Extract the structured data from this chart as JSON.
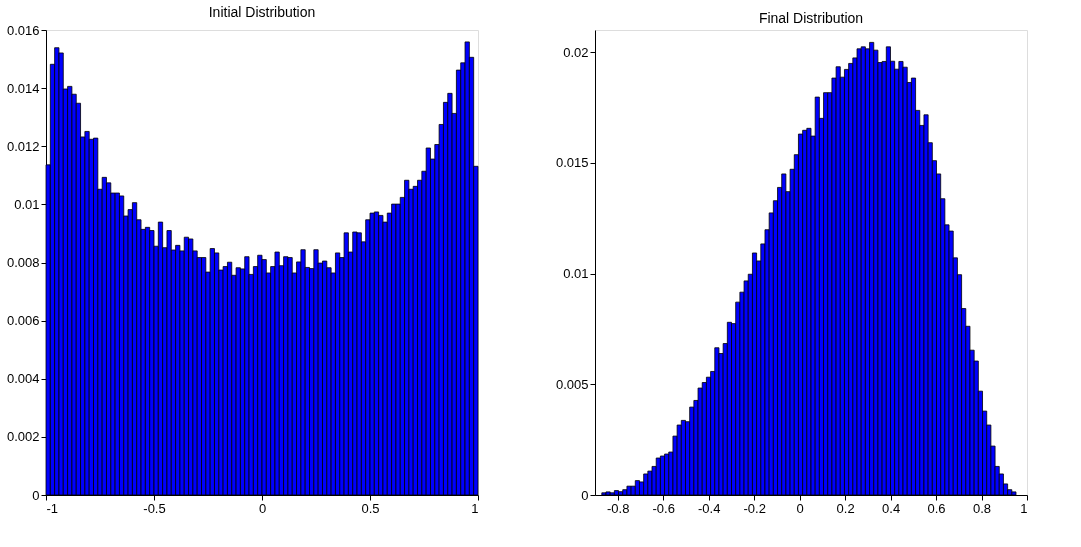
{
  "chart_data": [
    {
      "type": "histogram",
      "title": "Initial Distribution",
      "color": "#0000ff",
      "bins": [
        -1,
        -0.98,
        -0.96,
        -0.94,
        -0.92,
        -0.9,
        -0.88,
        -0.86,
        -0.84,
        -0.82,
        -0.8,
        -0.78,
        -0.76,
        -0.74,
        -0.72,
        -0.7,
        -0.68,
        -0.66,
        -0.64,
        -0.62,
        -0.6,
        -0.58,
        -0.56,
        -0.54,
        -0.52,
        -0.5,
        -0.48,
        -0.46,
        -0.44,
        -0.42,
        -0.4,
        -0.38,
        -0.36,
        -0.34,
        -0.32,
        -0.3,
        -0.28,
        -0.26,
        -0.24,
        -0.22,
        -0.2,
        -0.18,
        -0.16,
        -0.14,
        -0.12,
        -0.1,
        -0.08,
        -0.06,
        -0.04,
        -0.02,
        0,
        0.02,
        0.04,
        0.06,
        0.08,
        0.1,
        0.12,
        0.14,
        0.16,
        0.18,
        0.2,
        0.22,
        0.24,
        0.26,
        0.28,
        0.3,
        0.32,
        0.34,
        0.36,
        0.38,
        0.4,
        0.42,
        0.44,
        0.46,
        0.48,
        0.5,
        0.52,
        0.54,
        0.56,
        0.58,
        0.6,
        0.62,
        0.64,
        0.66,
        0.68,
        0.7,
        0.72,
        0.74,
        0.76,
        0.78,
        0.8,
        0.82,
        0.84,
        0.86,
        0.88,
        0.9,
        0.92,
        0.94,
        0.96,
        0.98,
        1
      ],
      "values": [
        0.01136,
        0.01482,
        0.01539,
        0.01521,
        0.01397,
        0.01406,
        0.01379,
        0.01348,
        0.01232,
        0.01251,
        0.01224,
        0.01228,
        0.01052,
        0.01093,
        0.01074,
        0.01039,
        0.01039,
        0.01029,
        0.0096,
        0.00982,
        0.01006,
        0.00947,
        0.00914,
        0.00921,
        0.0091,
        0.00856,
        0.00939,
        0.00851,
        0.0091,
        0.00843,
        0.00859,
        0.0084,
        0.00887,
        0.00881,
        0.0084,
        0.00817,
        0.00817,
        0.00767,
        0.00848,
        0.00833,
        0.00774,
        0.00786,
        0.00801,
        0.00756,
        0.00782,
        0.00778,
        0.0082,
        0.00759,
        0.00786,
        0.00825,
        0.0081,
        0.00764,
        0.00786,
        0.00836,
        0.00789,
        0.0082,
        0.00817,
        0.00764,
        0.00802,
        0.00844,
        0.00783,
        0.00779,
        0.00844,
        0.00798,
        0.00805,
        0.00782,
        0.00764,
        0.00833,
        0.00817,
        0.00902,
        0.00836,
        0.00905,
        0.00902,
        0.00871,
        0.00947,
        0.0097,
        0.00974,
        0.00962,
        0.00939,
        0.0097,
        0.01001,
        0.01001,
        0.01024,
        0.01083,
        0.01052,
        0.01062,
        0.01083,
        0.01114,
        0.01194,
        0.01156,
        0.01206,
        0.01275,
        0.01351,
        0.01382,
        0.01313,
        0.01462,
        0.01487,
        0.01559,
        0.01506,
        0.01131
      ],
      "xlim": [
        -1,
        1
      ],
      "ylim": [
        0,
        0.016
      ],
      "xticks": [
        -1,
        -0.5,
        0,
        0.5,
        1
      ],
      "yticks": [
        0,
        0.002,
        0.004,
        0.006,
        0.008,
        0.01,
        0.012,
        0.014,
        0.016
      ]
    },
    {
      "type": "histogram",
      "title": "Final Distribution",
      "color": "#0000ff",
      "bins": [
        -0.87,
        -0.8516,
        -0.8332,
        -0.8148,
        -0.7964,
        -0.778,
        -0.7596,
        -0.7412,
        -0.7228,
        -0.7044,
        -0.686,
        -0.6676,
        -0.6492,
        -0.6308,
        -0.6124,
        -0.594,
        -0.5756,
        -0.5572,
        -0.5388,
        -0.5204,
        -0.502,
        -0.4836,
        -0.4652,
        -0.4468,
        -0.4284,
        -0.41,
        -0.3916,
        -0.3732,
        -0.3548,
        -0.3364,
        -0.318,
        -0.2996,
        -0.2812,
        -0.2628,
        -0.2444,
        -0.226,
        -0.2076,
        -0.1892,
        -0.1708,
        -0.1524,
        -0.134,
        -0.1156,
        -0.0972,
        -0.0788,
        -0.0604,
        -0.042,
        -0.0236,
        -0.0052,
        0.0132,
        0.0316,
        0.05,
        0.0684,
        0.0868,
        0.1052,
        0.1236,
        0.142,
        0.1604,
        0.1788,
        0.1972,
        0.2156,
        0.234,
        0.2524,
        0.2708,
        0.2892,
        0.3076,
        0.326,
        0.3444,
        0.3628,
        0.3812,
        0.3996,
        0.418,
        0.4364,
        0.4548,
        0.4732,
        0.4916,
        0.51,
        0.5284,
        0.5468,
        0.5652,
        0.5836,
        0.602,
        0.6204,
        0.6388,
        0.6572,
        0.6756,
        0.694,
        0.7124,
        0.7308,
        0.7492,
        0.7676,
        0.786,
        0.8044,
        0.8228,
        0.8412,
        0.8596,
        0.878,
        0.8964,
        0.9148,
        0.9332,
        0.9516
      ],
      "values": [
        0.0001,
        0.00014,
        0.0001,
        0.0002,
        0.00015,
        0.00024,
        0.0004,
        0.0004,
        0.00065,
        0.00059,
        0.00095,
        0.00108,
        0.00129,
        0.00167,
        0.00176,
        0.00185,
        0.00194,
        0.00266,
        0.00316,
        0.00337,
        0.00331,
        0.00397,
        0.00427,
        0.00483,
        0.00508,
        0.00532,
        0.00558,
        0.00665,
        0.00639,
        0.00684,
        0.0078,
        0.00774,
        0.00871,
        0.00916,
        0.00967,
        0.00997,
        0.01093,
        0.01057,
        0.01134,
        0.01198,
        0.01274,
        0.01329,
        0.01389,
        0.0145,
        0.0137,
        0.01471,
        0.01537,
        0.0163,
        0.01647,
        0.01656,
        0.01621,
        0.01797,
        0.01701,
        0.01817,
        0.01817,
        0.01883,
        0.01934,
        0.01887,
        0.01922,
        0.01949,
        0.01974,
        0.02015,
        0.02024,
        0.02015,
        0.02044,
        0.02009,
        0.01953,
        0.01958,
        0.02024,
        0.01959,
        0.01923,
        0.01958,
        0.01932,
        0.01863,
        0.01883,
        0.01737,
        0.01669,
        0.01717,
        0.01591,
        0.0151,
        0.0145,
        0.01338,
        0.0122,
        0.01192,
        0.01071,
        0.00995,
        0.00842,
        0.00762,
        0.00654,
        0.00605,
        0.00469,
        0.00379,
        0.00316,
        0.00221,
        0.00129,
        0.00095,
        0.0005,
        0.00024,
        0.00014
      ],
      "xlim": [
        -0.9,
        1
      ],
      "ylim": [
        0,
        0.021
      ],
      "xticks": [
        -0.8,
        -0.6,
        -0.4,
        -0.2,
        0,
        0.2,
        0.4,
        0.6,
        0.8,
        1
      ],
      "yticks": [
        0,
        0.005,
        0.01,
        0.015,
        0.02
      ]
    }
  ]
}
